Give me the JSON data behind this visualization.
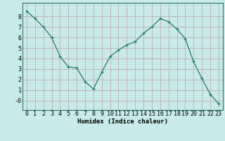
{
  "x": [
    0,
    1,
    2,
    3,
    4,
    5,
    6,
    7,
    8,
    9,
    10,
    11,
    12,
    13,
    14,
    15,
    16,
    17,
    18,
    19,
    20,
    21,
    22,
    23
  ],
  "y": [
    8.5,
    7.8,
    7.0,
    6.0,
    4.2,
    3.2,
    3.1,
    1.8,
    1.1,
    2.7,
    4.2,
    4.8,
    5.3,
    5.6,
    6.4,
    7.0,
    7.8,
    7.5,
    6.8,
    5.9,
    3.7,
    2.1,
    0.6,
    -0.3
  ],
  "line_color": "#2a7a6a",
  "marker": "+",
  "bg_color": "#c8eaea",
  "grid_color": "#c0a0a0",
  "xlabel": "Humidex (Indice chaleur)",
  "xlabel_fontsize": 6.5,
  "yticks": [
    0,
    1,
    2,
    3,
    4,
    5,
    6,
    7,
    8
  ],
  "ytick_labels": [
    "-0",
    "1",
    "2",
    "3",
    "4",
    "5",
    "6",
    "7",
    "8"
  ],
  "xlim": [
    -0.5,
    23.5
  ],
  "ylim": [
    -0.9,
    9.3
  ],
  "tick_fontsize": 6.0
}
